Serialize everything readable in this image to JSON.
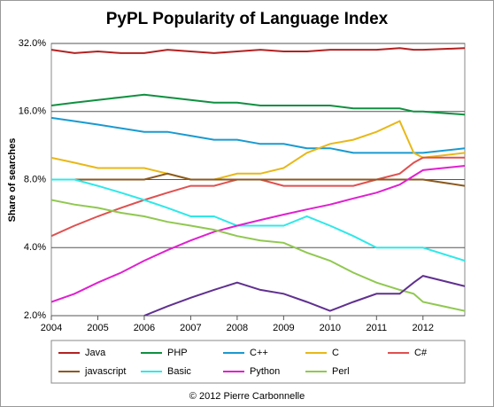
{
  "chart_data": {
    "type": "line",
    "title": "PyPL Popularity of Language Index",
    "y_label": "Share of searches",
    "footer": "© 2012 Pierre Carbonnelle",
    "log_scale": true,
    "grid": true,
    "x": [
      2004,
      2004.5,
      2005,
      2005.5,
      2006,
      2006.5,
      2007,
      2007.5,
      2008,
      2008.5,
      2009,
      2009.5,
      2010,
      2010.5,
      2011,
      2011.5,
      2011.8,
      2012,
      2012.9
    ],
    "xlim": [
      2004,
      2012.9
    ],
    "xticks": [
      2004,
      2005,
      2006,
      2007,
      2008,
      2009,
      2010,
      2011,
      2012
    ],
    "ylim": [
      2,
      32
    ],
    "yticks": [
      {
        "value": 2,
        "label": "2.0%"
      },
      {
        "value": 4,
        "label": "4.0%"
      },
      {
        "value": 8,
        "label": "8.0%"
      },
      {
        "value": 16,
        "label": "16.0%"
      },
      {
        "value": 32,
        "label": "32.0%"
      }
    ],
    "series": [
      {
        "name": "Java",
        "color": "#b22222",
        "values": [
          30,
          29,
          29.5,
          29,
          29,
          30,
          29.5,
          29,
          29.5,
          30,
          29.5,
          29.5,
          30,
          30,
          30,
          30.5,
          30,
          30,
          30.5
        ]
      },
      {
        "name": "PHP",
        "color": "#109040",
        "values": [
          17,
          17.5,
          18,
          18.5,
          19,
          18.5,
          18,
          17.5,
          17.5,
          17,
          17,
          17,
          17,
          16.5,
          16.5,
          16.5,
          16,
          16,
          15.5
        ]
      },
      {
        "name": "C++",
        "color": "#1a9ad0",
        "values": [
          15,
          14.5,
          14,
          13.5,
          13,
          13,
          12.5,
          12,
          12,
          11.5,
          11.5,
          11,
          11,
          10.5,
          10.5,
          10.5,
          10.5,
          10.5,
          11
        ]
      },
      {
        "name": "C",
        "color": "#e8b818",
        "values": [
          10,
          9.5,
          9,
          9,
          9,
          8.5,
          8,
          8,
          8.5,
          8.5,
          9,
          10.5,
          11.5,
          12,
          13,
          14.5,
          10.5,
          10,
          10.5
        ]
      },
      {
        "name": "C#",
        "color": "#e05050",
        "values": [
          4.5,
          5,
          5.5,
          6,
          6.5,
          7,
          7.5,
          7.5,
          8,
          8,
          7.5,
          7.5,
          7.5,
          7.5,
          8,
          8.5,
          9.5,
          10,
          10
        ]
      },
      {
        "name": "javascript",
        "color": "#8b5a20",
        "values": [
          8,
          8,
          8,
          8,
          8,
          8.5,
          8,
          8,
          8,
          8,
          8,
          8,
          8,
          8,
          8,
          8,
          8,
          8,
          7.5
        ]
      },
      {
        "name": "Basic",
        "color": "#30e8e8",
        "values": [
          8,
          8,
          7.5,
          7,
          6.5,
          6,
          5.5,
          5.5,
          5,
          5,
          5,
          5.5,
          5,
          4.5,
          4,
          4,
          4,
          4,
          3.5
        ]
      },
      {
        "name": "Python",
        "color": "#e020d0",
        "values": [
          2.3,
          2.5,
          2.8,
          3.1,
          3.5,
          3.9,
          4.3,
          4.7,
          5,
          5.3,
          5.6,
          5.9,
          6.2,
          6.6,
          7,
          7.6,
          8.3,
          8.8,
          9.2
        ]
      },
      {
        "name": "Perl",
        "color": "#90c850",
        "values": [
          6.5,
          6.2,
          6,
          5.7,
          5.5,
          5.2,
          5,
          4.8,
          4.5,
          4.3,
          4.2,
          3.8,
          3.5,
          3.1,
          2.8,
          2.6,
          2.5,
          2.3,
          2.1
        ]
      },
      {
        "color": "#603090",
        "values": [
          null,
          null,
          null,
          null,
          2.0,
          2.2,
          2.4,
          2.6,
          2.8,
          2.6,
          2.5,
          2.3,
          2.1,
          2.3,
          2.5,
          2.5,
          2.8,
          3.0,
          2.7
        ]
      }
    ]
  }
}
